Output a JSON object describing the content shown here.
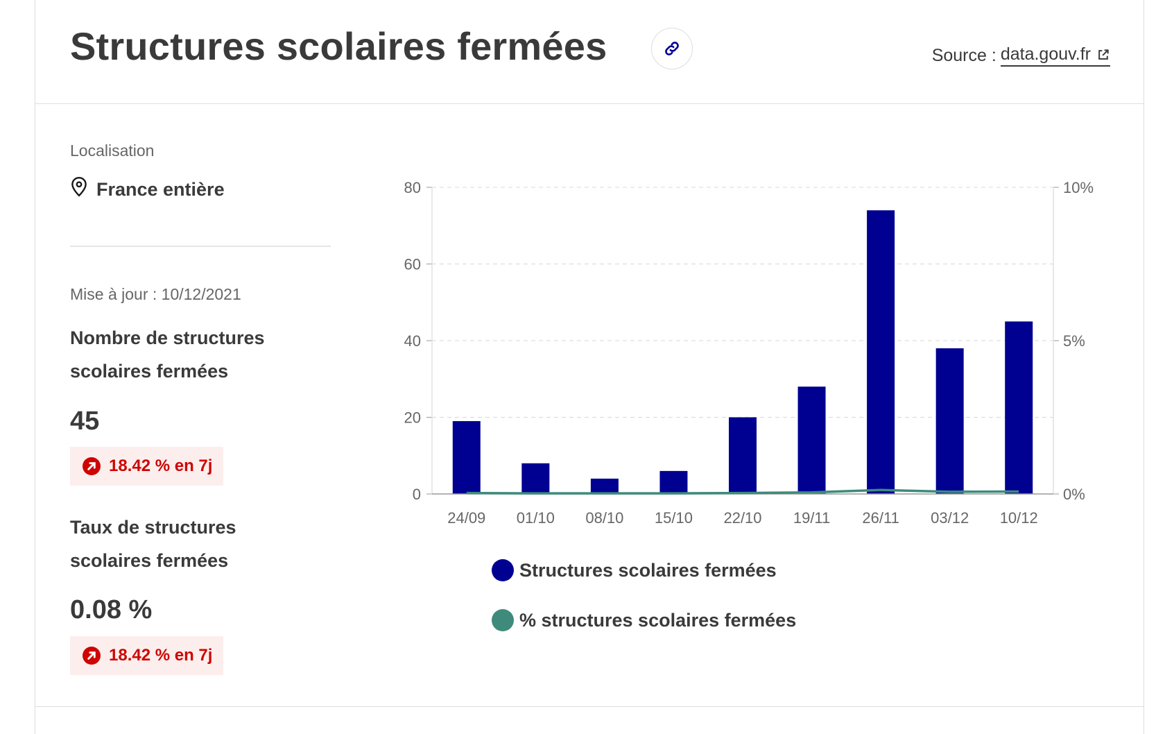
{
  "header": {
    "title": "Structures scolaires fermées",
    "source_prefix": "Source :",
    "source_link": "data.gouv.fr"
  },
  "location": {
    "label": "Localisation",
    "value": "France entière"
  },
  "updated": "Mise à jour : 10/12/2021",
  "kpis": [
    {
      "label": "Nombre de structures scolaires fermées",
      "value": "45",
      "change": "18.42 % en 7j"
    },
    {
      "label": "Taux de structures scolaires fermées",
      "value": "0.08 %",
      "change": "18.42 % en 7j"
    }
  ],
  "colors": {
    "bar": "#000091",
    "line": "#3e8b7c",
    "change": "#ce0500",
    "change_bg": "#fdeeee"
  },
  "chart_data": {
    "type": "bar",
    "categories": [
      "24/09",
      "01/10",
      "08/10",
      "15/10",
      "22/10",
      "19/11",
      "26/11",
      "03/12",
      "10/12"
    ],
    "series": [
      {
        "name": "Structures scolaires fermées",
        "type": "bar",
        "axis": "left",
        "values": [
          19,
          8,
          4,
          6,
          20,
          28,
          74,
          38,
          45
        ]
      },
      {
        "name": "% structures scolaires fermées",
        "type": "line",
        "axis": "right",
        "values": [
          0.03,
          0.02,
          0.02,
          0.02,
          0.03,
          0.05,
          0.13,
          0.07,
          0.08
        ]
      }
    ],
    "yleft": {
      "ylim": [
        0,
        80
      ],
      "ticks": [
        "0",
        "20",
        "40",
        "60",
        "80"
      ]
    },
    "yright": {
      "ylim": [
        0,
        10
      ],
      "ticks": [
        "0%",
        "5%",
        "10%"
      ]
    },
    "grid": true,
    "legend": "bottom"
  }
}
